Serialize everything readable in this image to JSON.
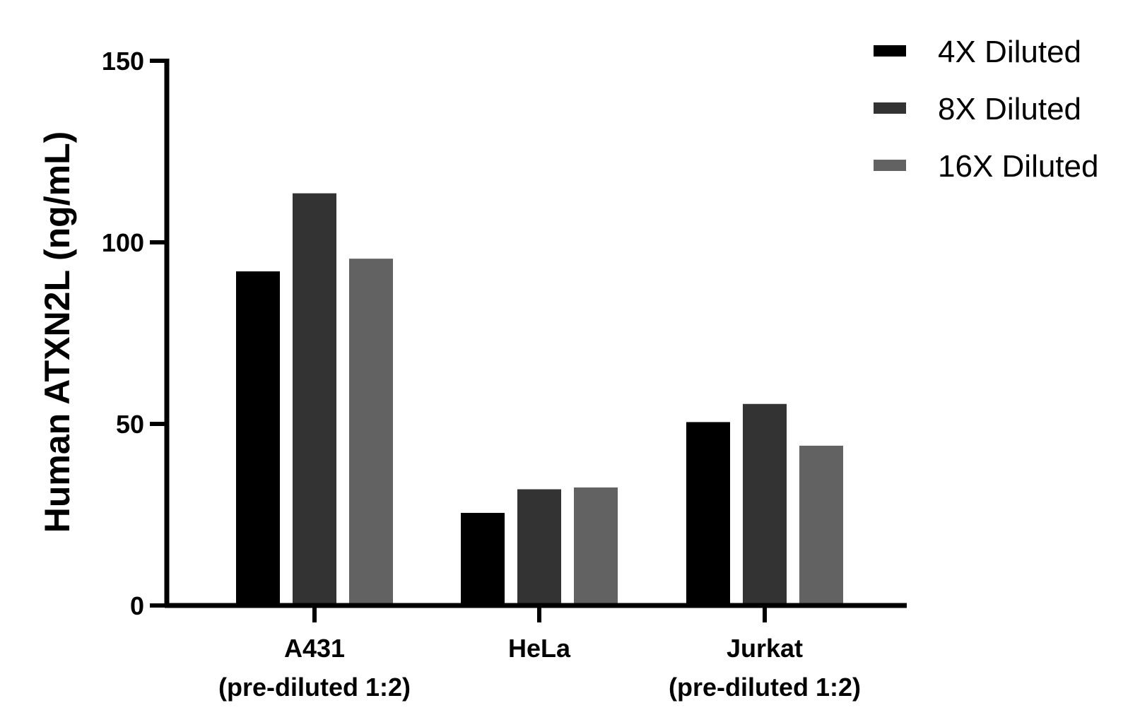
{
  "chart_data": {
    "type": "bar",
    "title": "",
    "xlabel": "",
    "ylabel": "Human ATXN2L  (ng/mL)",
    "ylim": [
      0,
      150
    ],
    "yticks": [
      0,
      50,
      100,
      150
    ],
    "ytick_labels": [
      "0",
      "50",
      "100",
      "150"
    ],
    "grid": false,
    "legend_position": "top-right",
    "categories": [
      {
        "line1": "A431",
        "line2": "(pre-diluted 1:2)"
      },
      {
        "line1": "HeLa",
        "line2": ""
      },
      {
        "line1": "Jurkat",
        "line2": "(pre-diluted 1:2)"
      }
    ],
    "series": [
      {
        "name": "4X Diluted",
        "color": "#000000",
        "values": [
          92,
          25.5,
          50.5
        ]
      },
      {
        "name": "8X Diluted",
        "color": "#333333",
        "values": [
          113.5,
          32,
          55.5
        ]
      },
      {
        "name": "16X Diluted",
        "color": "#626262",
        "values": [
          95.5,
          32.5,
          44
        ]
      }
    ]
  }
}
